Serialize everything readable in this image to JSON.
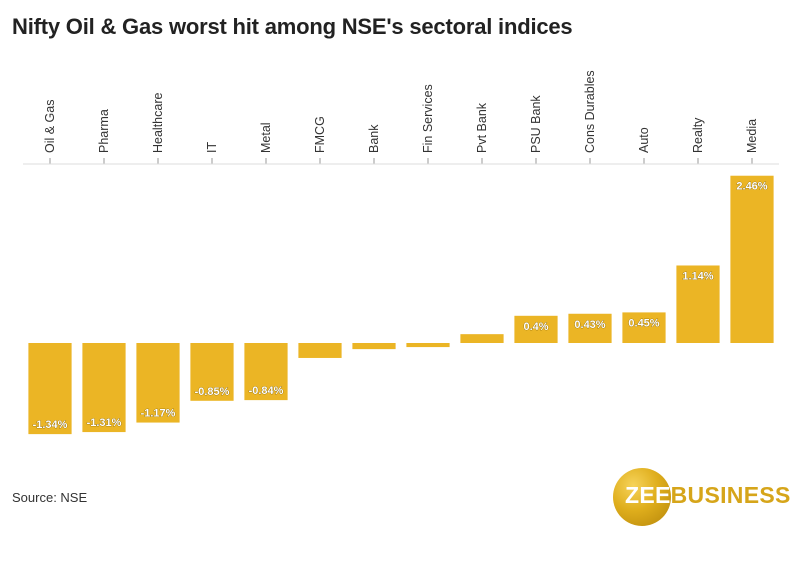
{
  "title": "Nifty Oil & Gas worst hit among NSE's sectoral indices",
  "source": "Source: NSE",
  "logo": {
    "part1": "ZEE",
    "part2": "BUSINESS"
  },
  "colors": {
    "bar": "#EBB525",
    "label_text": "#ffffff",
    "zero_line": "#cccccc"
  },
  "chart_data": {
    "type": "bar",
    "categories": [
      "Oil & Gas",
      "Pharma",
      "Healthcare",
      "IT",
      "Metal",
      "FMCG",
      "Bank",
      "Fin Services",
      "Pvt Bank",
      "PSU Bank",
      "Cons Durables",
      "Auto",
      "Realty",
      "Media"
    ],
    "values": [
      -1.34,
      -1.31,
      -1.17,
      -0.85,
      -0.84,
      -0.22,
      -0.09,
      -0.06,
      0.13,
      0.4,
      0.43,
      0.45,
      1.14,
      2.46
    ],
    "data_labels": [
      "-1.34%",
      "-1.31%",
      "-1.17%",
      "-0.85%",
      "-0.84%",
      "",
      "",
      "",
      "",
      "0.4%",
      "0.43%",
      "0.45%",
      "1.14%",
      "2.46%"
    ],
    "ylim": [
      -1.4,
      2.5
    ],
    "xlabel": "",
    "ylabel": "",
    "grid": false
  }
}
